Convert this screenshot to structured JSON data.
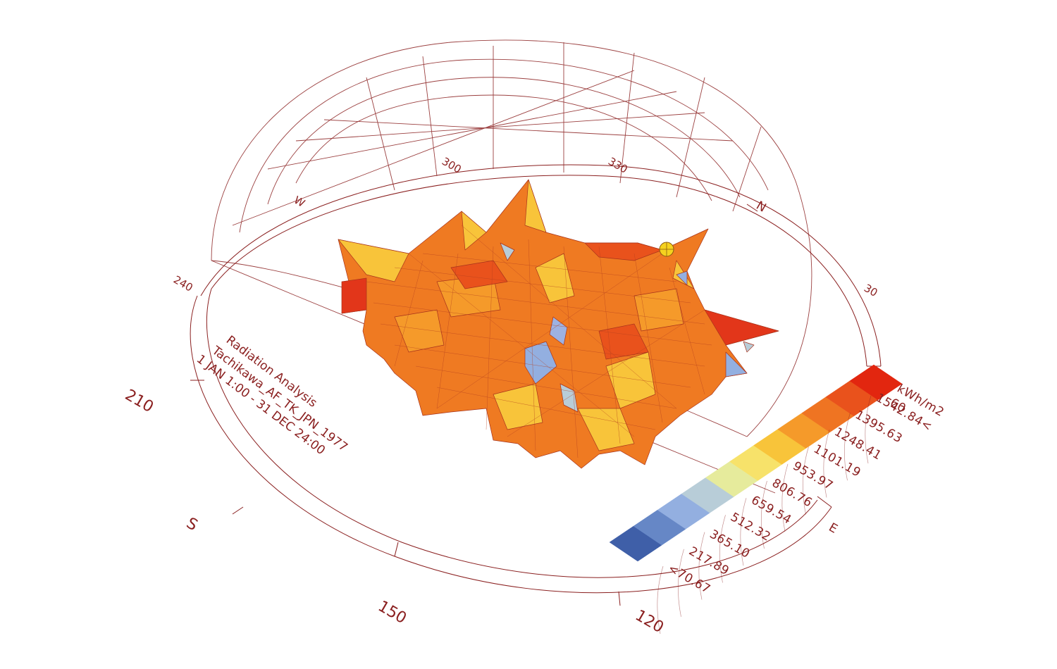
{
  "info": {
    "title": "Radiation Analysis",
    "location": "Tachikawa_AF_TK_JPN_1977",
    "period": "1 JAN 1:00 - 31 DEC 24:00"
  },
  "compass": {
    "north": "N",
    "east": "E",
    "south": "S",
    "west": "W"
  },
  "angles": {
    "a30": "30",
    "a120": "120",
    "a150": "150",
    "a210": "210",
    "a240": "240",
    "a300": "300",
    "a330": "330"
  },
  "legend": {
    "unit": "kWh/m2",
    "labels": [
      "1542.84<",
      "1395.63",
      "1248.41",
      "1101.19",
      "953.97",
      "806.76",
      "659.54",
      "512.32",
      "365.10",
      "217.89",
      "<70.67"
    ],
    "extra_top": "60",
    "colors": [
      "#3f5fa8",
      "#6687c6",
      "#93afe0",
      "#b8cdd8",
      "#e6eb9c",
      "#f7e26a",
      "#f8c43a",
      "#f59a2a",
      "#ef7422",
      "#e9521c",
      "#e2260f"
    ]
  },
  "colors": {
    "line": "#8a1f1f",
    "surface_orange": "#ef7a22",
    "surface_yellow": "#f8c43a",
    "surface_red": "#e2361a",
    "surface_blue": "#9db2e3"
  }
}
